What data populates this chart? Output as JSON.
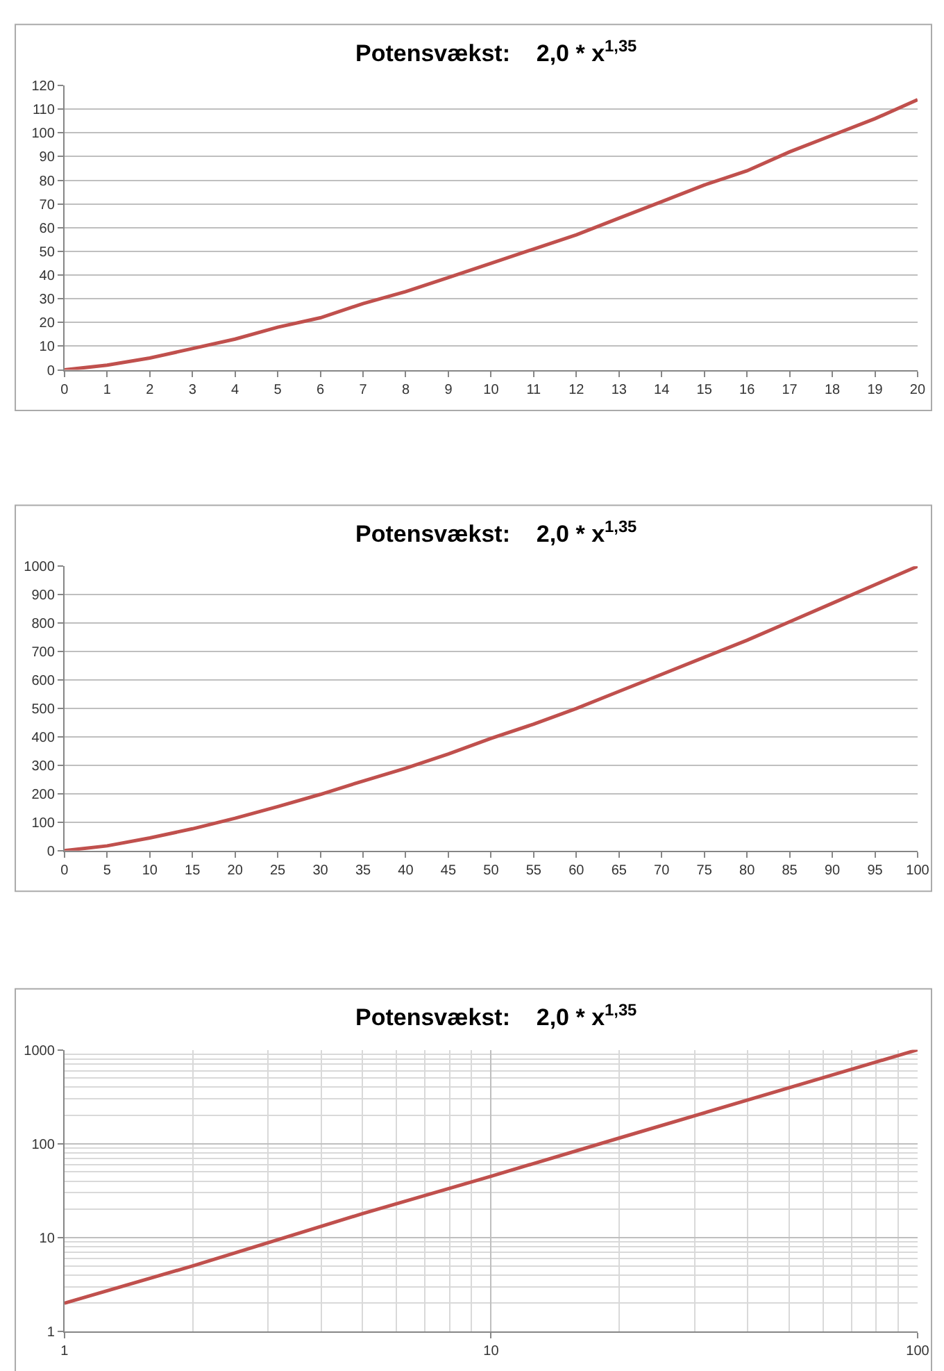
{
  "chart_data": [
    {
      "type": "line",
      "title": "Potensvækst:    2,0 * x$^{1,35}$",
      "x": [
        0,
        1,
        2,
        3,
        4,
        5,
        6,
        7,
        8,
        9,
        10,
        11,
        12,
        13,
        14,
        15,
        16,
        17,
        18,
        19,
        20
      ],
      "series": [
        {
          "color": "#c0504d",
          "values": [
            0,
            2,
            5,
            9,
            13,
            18,
            22,
            28,
            33,
            39,
            45,
            51,
            57,
            64,
            71,
            78,
            84,
            92,
            99,
            106,
            114
          ]
        }
      ],
      "xlim": [
        0,
        20
      ],
      "xticks": [
        0,
        1,
        2,
        3,
        4,
        5,
        6,
        7,
        8,
        9,
        10,
        11,
        12,
        13,
        14,
        15,
        16,
        17,
        18,
        19,
        20
      ],
      "ylim": [
        0,
        120
      ],
      "yticks": [
        0,
        10,
        20,
        30,
        40,
        50,
        60,
        70,
        80,
        90,
        100,
        110,
        120
      ],
      "grid": "y",
      "marker": "none",
      "line_style": "solid"
    },
    {
      "type": "line",
      "title": "Potensvækst:    2,0 * x$^{1,35}$",
      "x": [
        0,
        5,
        10,
        15,
        20,
        25,
        30,
        35,
        40,
        45,
        50,
        55,
        60,
        65,
        70,
        75,
        80,
        85,
        90,
        95,
        100
      ],
      "series": [
        {
          "color": "#c0504d",
          "values": [
            0,
            17,
            45,
            77,
            114,
            155,
            198,
            245,
            290,
            340,
            395,
            445,
            500,
            560,
            620,
            680,
            740,
            805,
            870,
            935,
            1000
          ]
        }
      ],
      "xlim": [
        0,
        100
      ],
      "xticks": [
        0,
        5,
        10,
        15,
        20,
        25,
        30,
        35,
        40,
        45,
        50,
        55,
        60,
        65,
        70,
        75,
        80,
        85,
        90,
        95,
        100
      ],
      "ylim": [
        0,
        1000
      ],
      "yticks": [
        0,
        100,
        200,
        300,
        400,
        500,
        600,
        700,
        800,
        900,
        1000
      ],
      "grid": "y",
      "marker": "none",
      "line_style": "solid"
    },
    {
      "type": "line",
      "title": "Potensvækst:    2,0 * x$^{1,35}$",
      "x": [
        1,
        2,
        5,
        10,
        20,
        50,
        100
      ],
      "series": [
        {
          "color": "#c0504d",
          "values": [
            2,
            5,
            18,
            45,
            115,
            395,
            1000
          ]
        }
      ],
      "xlim": [
        1,
        100
      ],
      "xticks": [
        1,
        10,
        100
      ],
      "ylim": [
        1,
        1000
      ],
      "yticks": [
        1,
        10,
        100,
        1000
      ],
      "log": "xy",
      "grid": true,
      "marker": "none",
      "line_style": "solid"
    }
  ]
}
